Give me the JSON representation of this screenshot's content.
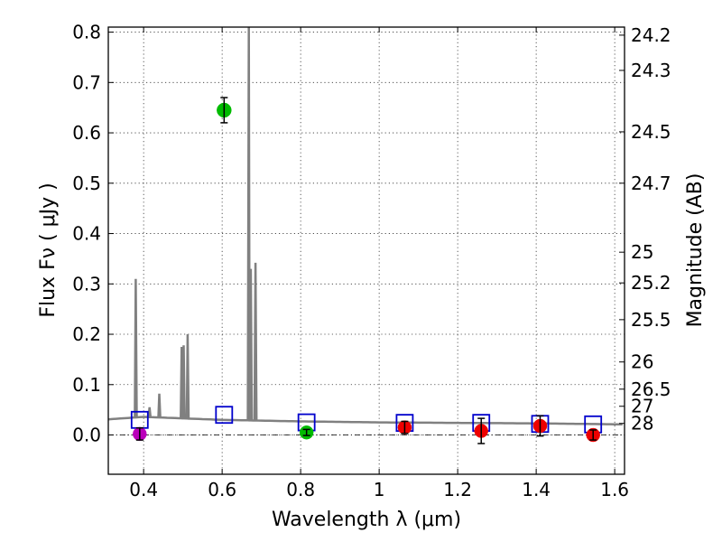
{
  "chart_data": {
    "type": "scatter",
    "xlabel": "Wavelength  λ (μm)",
    "ylabel": "Flux  Fν  ( μJy )",
    "ylabel_right": "Magnitude (AB)",
    "xlim": [
      0.31,
      1.625
    ],
    "ylim": [
      -0.078,
      0.81
    ],
    "grid": true,
    "colors": {
      "spectrum": "#808080",
      "model": "#0000cc",
      "uv": "#bb00bb",
      "optical": "#00bb00",
      "nir": "#ee0000",
      "errorbar": "#000000"
    },
    "x_ticks": [
      {
        "value": 0.4,
        "label": "0.4"
      },
      {
        "value": 0.6,
        "label": "0.6"
      },
      {
        "value": 0.8,
        "label": "0.8"
      },
      {
        "value": 1.0,
        "label": "1"
      },
      {
        "value": 1.2,
        "label": "1.2"
      },
      {
        "value": 1.4,
        "label": "1.4"
      },
      {
        "value": 1.6,
        "label": "1.6"
      }
    ],
    "y_ticks": [
      {
        "value": 0.0,
        "label": "0.0"
      },
      {
        "value": 0.1,
        "label": "0.1"
      },
      {
        "value": 0.2,
        "label": "0.2"
      },
      {
        "value": 0.3,
        "label": "0.3"
      },
      {
        "value": 0.4,
        "label": "0.4"
      },
      {
        "value": 0.5,
        "label": "0.5"
      },
      {
        "value": 0.6,
        "label": "0.6"
      },
      {
        "value": 0.7,
        "label": "0.7"
      },
      {
        "value": 0.8,
        "label": "0.8"
      }
    ],
    "magnitude_ticks": [
      {
        "value": 0.794,
        "label": "24.2"
      },
      {
        "value": 0.724,
        "label": "24.3"
      },
      {
        "value": 0.602,
        "label": "24.5"
      },
      {
        "value": 0.5,
        "label": "24.7"
      },
      {
        "value": 0.363,
        "label": "25"
      },
      {
        "value": 0.302,
        "label": "25.2"
      },
      {
        "value": 0.229,
        "label": "25.5"
      },
      {
        "value": 0.145,
        "label": "26"
      },
      {
        "value": 0.091,
        "label": "26.5"
      },
      {
        "value": 0.057,
        "label": "27"
      },
      {
        "value": 0.023,
        "label": "28"
      }
    ],
    "model_points": [
      {
        "x": 0.39,
        "y": 0.03
      },
      {
        "x": 0.605,
        "y": 0.04
      },
      {
        "x": 0.815,
        "y": 0.025
      },
      {
        "x": 1.065,
        "y": 0.024
      },
      {
        "x": 1.26,
        "y": 0.024
      },
      {
        "x": 1.41,
        "y": 0.022
      },
      {
        "x": 1.545,
        "y": 0.021
      }
    ],
    "observed_points": [
      {
        "x": 0.39,
        "y": 0.002,
        "err": 0.012,
        "band": "uv"
      },
      {
        "x": 0.605,
        "y": 0.645,
        "err": 0.025,
        "band": "optical"
      },
      {
        "x": 0.815,
        "y": 0.005,
        "err": 0.006,
        "band": "optical"
      },
      {
        "x": 1.065,
        "y": 0.015,
        "err": 0.012,
        "band": "nir"
      },
      {
        "x": 1.26,
        "y": 0.008,
        "err": 0.025,
        "band": "nir"
      },
      {
        "x": 1.41,
        "y": 0.018,
        "err": 0.02,
        "band": "nir"
      },
      {
        "x": 1.545,
        "y": 0.0,
        "err": 0.01,
        "band": "nir"
      }
    ],
    "spectrum": {
      "continuum": [
        [
          0.31,
          0.031
        ],
        [
          0.4,
          0.036
        ],
        [
          0.5,
          0.033
        ],
        [
          0.6,
          0.03
        ],
        [
          0.8,
          0.027
        ],
        [
          1.0,
          0.025
        ],
        [
          1.2,
          0.024
        ],
        [
          1.4,
          0.023
        ],
        [
          1.625,
          0.021
        ]
      ],
      "emission_lines": [
        {
          "x": 0.38,
          "peak": 0.31
        },
        {
          "x": 0.415,
          "peak": 0.055
        },
        {
          "x": 0.44,
          "peak": 0.082
        },
        {
          "x": 0.497,
          "peak": 0.175
        },
        {
          "x": 0.502,
          "peak": 0.178
        },
        {
          "x": 0.512,
          "peak": 0.2
        },
        {
          "x": 0.668,
          "peak": 0.81
        },
        {
          "x": 0.673,
          "peak": 0.33
        },
        {
          "x": 0.685,
          "peak": 0.342
        }
      ]
    }
  }
}
